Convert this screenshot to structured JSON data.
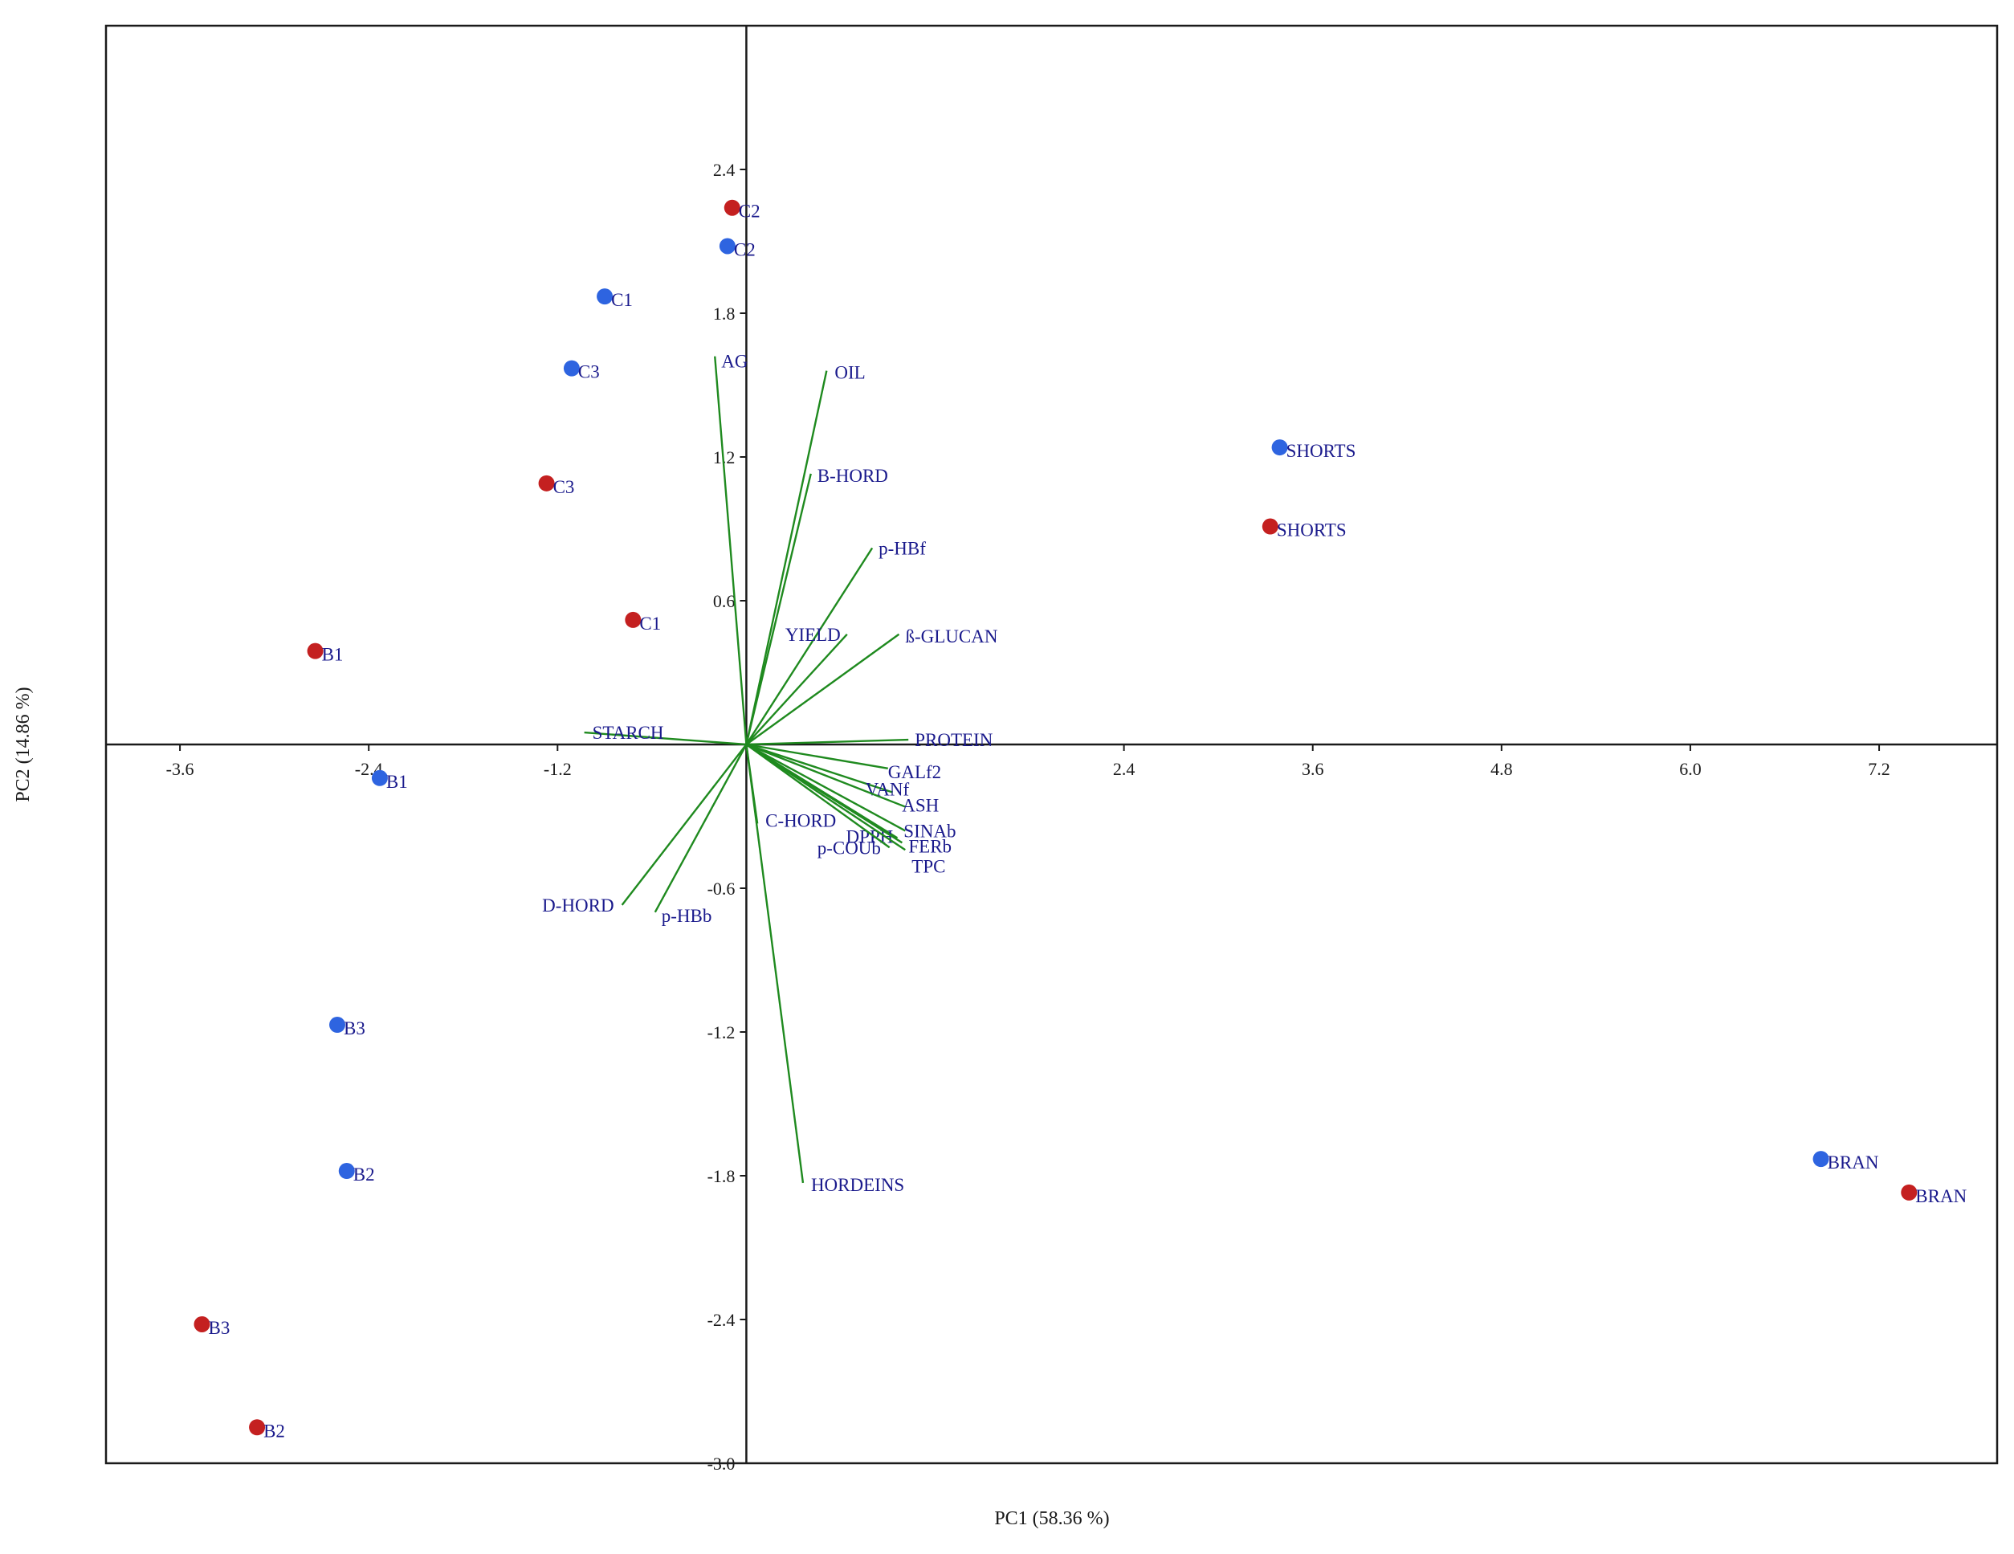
{
  "chart_data": {
    "type": "scatter",
    "subtype": "PCA biplot",
    "title": "",
    "xlabel": "PC1 (58.36 %)",
    "ylabel": "PC2 (14.86 %)",
    "xlim": [
      -4.07,
      7.95
    ],
    "ylim": [
      -3.0,
      3.0
    ],
    "xticks": [
      -3.6,
      -2.4,
      -1.2,
      2.4,
      3.6,
      4.8,
      6.0,
      7.2
    ],
    "xtick_labels": [
      "-3.6",
      "-2.4",
      "-1.2",
      "2.4",
      "3.6",
      "4.8",
      "6.0",
      "7.2"
    ],
    "yticks": [
      2.4,
      1.8,
      1.2,
      0.6,
      -0.6,
      -1.2,
      -1.8,
      -2.4,
      -3.0
    ],
    "ytick_labels": [
      "2.4",
      "1.8",
      "1.2",
      "0.6",
      "-0.6",
      "-1.2",
      "-1.8",
      "-2.4",
      "-3.0"
    ],
    "grid": false,
    "colors": {
      "series_a": "#2e64e0",
      "series_b": "#c42020",
      "vectors": "#1f8a1f",
      "labels": "#1a1a8c",
      "frame": "#1a1a1a"
    },
    "series": [
      {
        "name": "blue",
        "color": "#2e64e0",
        "points": [
          {
            "label": "C2",
            "x": -0.12,
            "y": 2.08
          },
          {
            "label": "C1",
            "x": -0.9,
            "y": 1.87
          },
          {
            "label": "C3",
            "x": -1.11,
            "y": 1.57
          },
          {
            "label": "SHORTS",
            "x": 3.39,
            "y": 1.24
          },
          {
            "label": "B1",
            "x": -2.33,
            "y": -0.14
          },
          {
            "label": "B3",
            "x": -2.6,
            "y": -1.17
          },
          {
            "label": "B2",
            "x": -2.54,
            "y": -1.78
          },
          {
            "label": "BRAN",
            "x": 6.83,
            "y": -1.73
          }
        ]
      },
      {
        "name": "red",
        "color": "#c42020",
        "points": [
          {
            "label": "C2",
            "x": -0.09,
            "y": 2.24
          },
          {
            "label": "C3",
            "x": -1.27,
            "y": 1.09
          },
          {
            "label": "C1",
            "x": -0.72,
            "y": 0.52
          },
          {
            "label": "B1",
            "x": -2.74,
            "y": 0.39
          },
          {
            "label": "SHORTS",
            "x": 3.33,
            "y": 0.91
          },
          {
            "label": "B3",
            "x": -3.46,
            "y": -2.42
          },
          {
            "label": "B2",
            "x": -3.11,
            "y": -2.85
          },
          {
            "label": "BRAN",
            "x": 7.39,
            "y": -1.87
          }
        ]
      }
    ],
    "vectors": [
      {
        "label": "AG",
        "x": -0.2,
        "y": 1.62
      },
      {
        "label": "OIL",
        "x": 0.51,
        "y": 1.56
      },
      {
        "label": "B-HORD",
        "x": 0.41,
        "y": 1.13
      },
      {
        "label": "p-HBf",
        "x": 0.8,
        "y": 0.82
      },
      {
        "label": "YIELD",
        "x": 0.64,
        "y": 0.46
      },
      {
        "label": "ß-GLUCAN",
        "x": 0.97,
        "y": 0.46
      },
      {
        "label": "STARCH",
        "x": -1.03,
        "y": 0.05
      },
      {
        "label": "PROTEIN",
        "x": 1.03,
        "y": 0.02
      },
      {
        "label": "GALf2",
        "x": 0.9,
        "y": -0.1
      },
      {
        "label": "VANf",
        "x": 0.93,
        "y": -0.2
      },
      {
        "label": "ASH",
        "x": 1.01,
        "y": -0.26
      },
      {
        "label": "SINAb",
        "x": 1.01,
        "y": -0.36
      },
      {
        "label": "DPPH",
        "x": 0.96,
        "y": -0.39
      },
      {
        "label": "FERb",
        "x": 0.99,
        "y": -0.41
      },
      {
        "label": "p-COUb",
        "x": 0.91,
        "y": -0.43
      },
      {
        "label": "TPC",
        "x": 1.01,
        "y": -0.44
      },
      {
        "label": "C-HORD",
        "x": 0.07,
        "y": -0.33
      },
      {
        "label": "D-HORD",
        "x": -0.79,
        "y": -0.67
      },
      {
        "label": "p-HBb",
        "x": -0.58,
        "y": -0.7
      },
      {
        "label": "HORDEINS",
        "x": 0.36,
        "y": -1.83
      }
    ]
  }
}
